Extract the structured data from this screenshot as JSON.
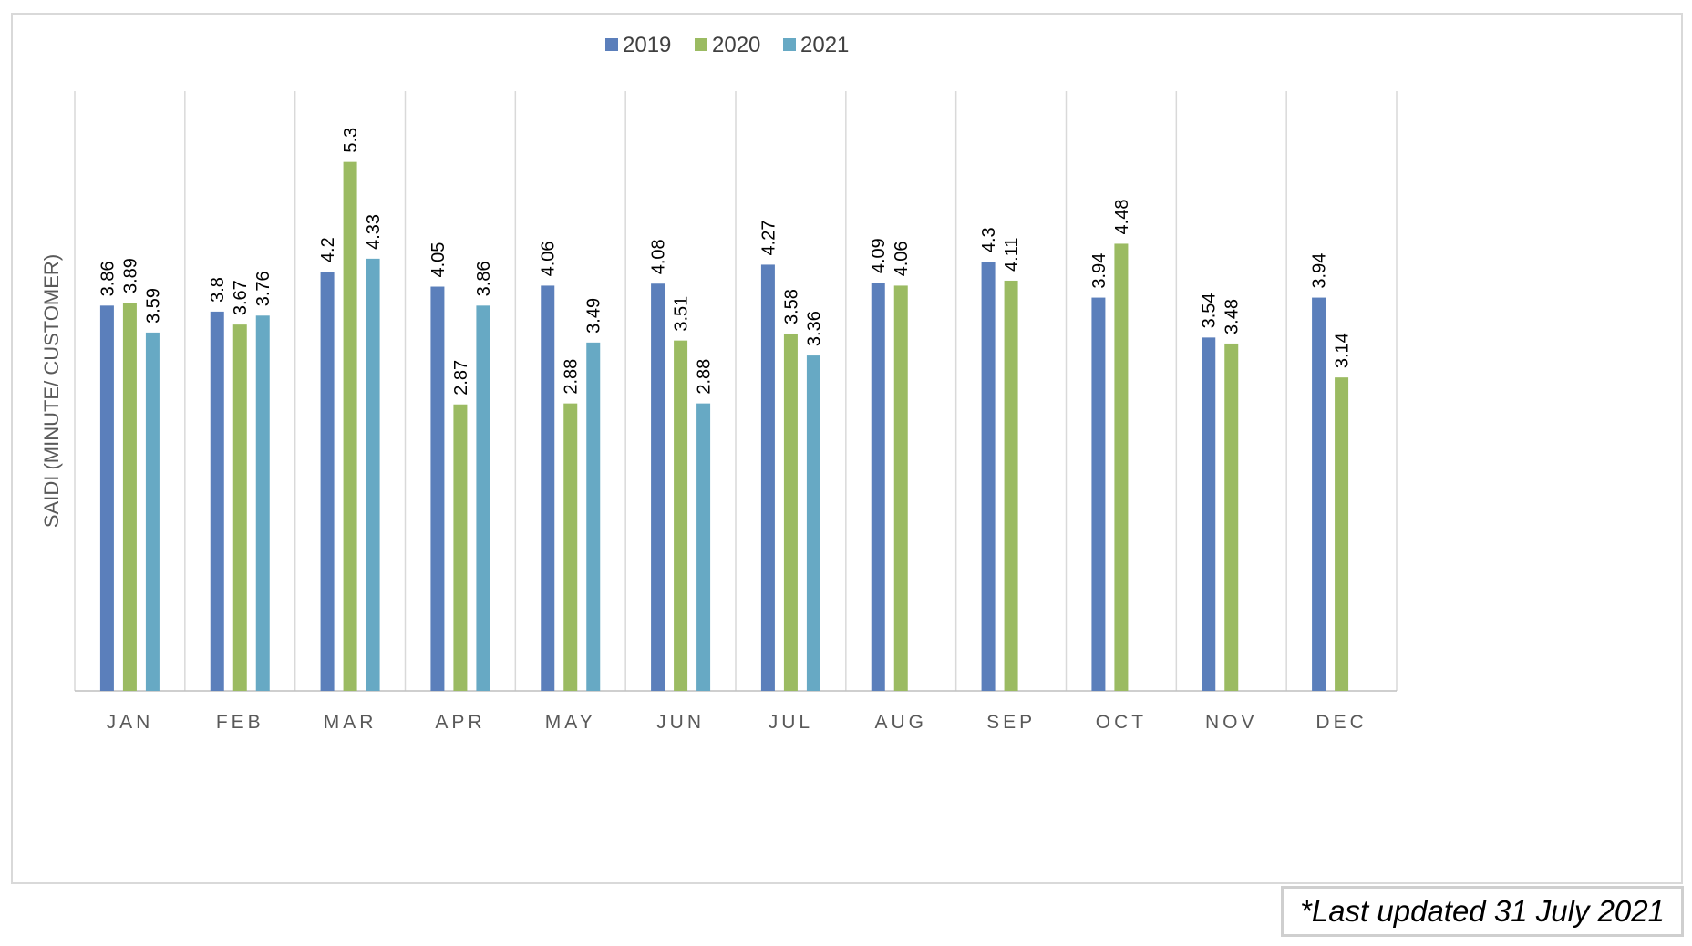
{
  "chart_data": {
    "type": "bar",
    "title": "",
    "ylabel": "SAIDI (MINUTE/ CUSTOMER)",
    "xlabel": "",
    "ylim": [
      0,
      6
    ],
    "grid": "vertical-category-separators",
    "legend_position": "top-center",
    "categories": [
      "JAN",
      "FEB",
      "MAR",
      "APR",
      "MAY",
      "JUN",
      "JUL",
      "AUG",
      "SEP",
      "OCT",
      "NOV",
      "DEC"
    ],
    "series": [
      {
        "name": "2019",
        "color": "#5b7fbb",
        "values": [
          3.86,
          3.8,
          4.2,
          4.05,
          4.06,
          4.08,
          4.27,
          4.09,
          4.3,
          3.94,
          3.54,
          3.94
        ]
      },
      {
        "name": "2020",
        "color": "#9bbb62",
        "values": [
          3.89,
          3.67,
          5.3,
          2.87,
          2.88,
          3.51,
          3.58,
          4.06,
          4.11,
          4.48,
          3.48,
          3.14
        ]
      },
      {
        "name": "2021",
        "color": "#67a9c4",
        "values": [
          3.59,
          3.76,
          4.33,
          3.86,
          3.49,
          2.88,
          3.36,
          null,
          null,
          null,
          null,
          null
        ]
      }
    ]
  },
  "note": "*Last updated 31 July 2021"
}
